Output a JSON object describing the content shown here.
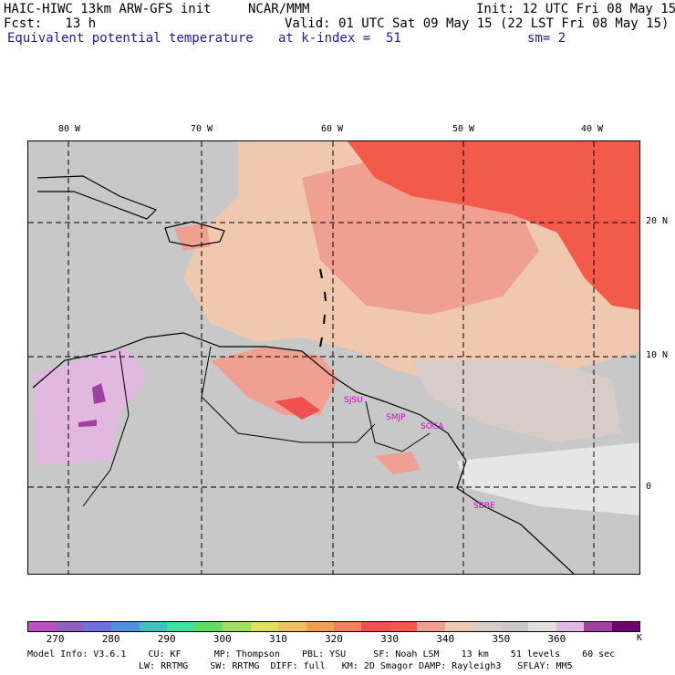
{
  "header": {
    "model": "HAIC-HIWC 13km ARW-GFS init",
    "org": "NCAR/MMM",
    "init": "Init: 12 UTC Fri 08 May 15",
    "fcst": "Fcst:   13 h",
    "valid": "Valid: 01 UTC Sat 09 May 15 (22 LST Fri 08 May 15)",
    "field": "Equivalent potential temperature",
    "level": "at k-index =  51",
    "smooth": "sm= 2"
  },
  "lon_labels": [
    "80 W",
    "70 W",
    "60 W",
    "50 W",
    "40 W"
  ],
  "lat_labels": [
    "20 N",
    "10 N",
    "0"
  ],
  "stations": [
    "SJSU",
    "SMJP",
    "SOCA",
    "SBBE"
  ],
  "colorbar": {
    "colors": [
      "#c050c0",
      "#9060c0",
      "#7070e0",
      "#5090e0",
      "#40c0c0",
      "#40e0a0",
      "#60e060",
      "#a0e060",
      "#e0e060",
      "#f0c060",
      "#f0a050",
      "#f08060",
      "#f05050",
      "#f05a4a",
      "#f0a090",
      "#f0c8b0",
      "#d8ccc8",
      "#c8c8c8",
      "#e0e0e0",
      "#e0b8e0",
      "#a040a0",
      "#700070"
    ],
    "ticks": [
      "270",
      "280",
      "290",
      "300",
      "310",
      "320",
      "330",
      "340",
      "350",
      "360"
    ],
    "unit": "K"
  },
  "footer": {
    "line1": "Model Info: V3.6.1    CU: KF      MP: Thompson    PBL: YSU     SF: Noah LSM    13 km    51 levels    60 sec",
    "line2": "LW: RRTMG    SW: RRTMG  DIFF: full   KM: 2D Smagor DAMP: Rayleigh3   SFLAY: MM5"
  }
}
